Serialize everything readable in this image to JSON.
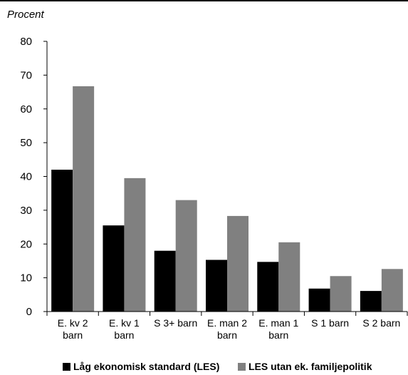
{
  "chart_data": {
    "type": "bar",
    "ylabel": "Procent",
    "ylim": [
      0,
      80
    ],
    "yticks": [
      0,
      10,
      20,
      30,
      40,
      50,
      60,
      70,
      80
    ],
    "categories": [
      [
        "E. kv 2",
        "barn"
      ],
      [
        "E. kv 1",
        "barn"
      ],
      [
        "S 3+ barn"
      ],
      [
        "E. man 2",
        "barn"
      ],
      [
        "E. man 1",
        "barn"
      ],
      [
        "S 1 barn"
      ],
      [
        "S 2 barn"
      ]
    ],
    "series": [
      {
        "name": "Låg ekonomisk standard (LES)",
        "color": "#000000",
        "values": [
          42,
          25.5,
          18,
          15.3,
          14.7,
          6.8,
          6.1
        ]
      },
      {
        "name": "LES utan ek. familjepolitik",
        "color": "#808080",
        "values": [
          66.7,
          39.5,
          33,
          28.3,
          20.5,
          10.5,
          12.6
        ]
      }
    ],
    "grid": false,
    "legend": "bottom"
  }
}
